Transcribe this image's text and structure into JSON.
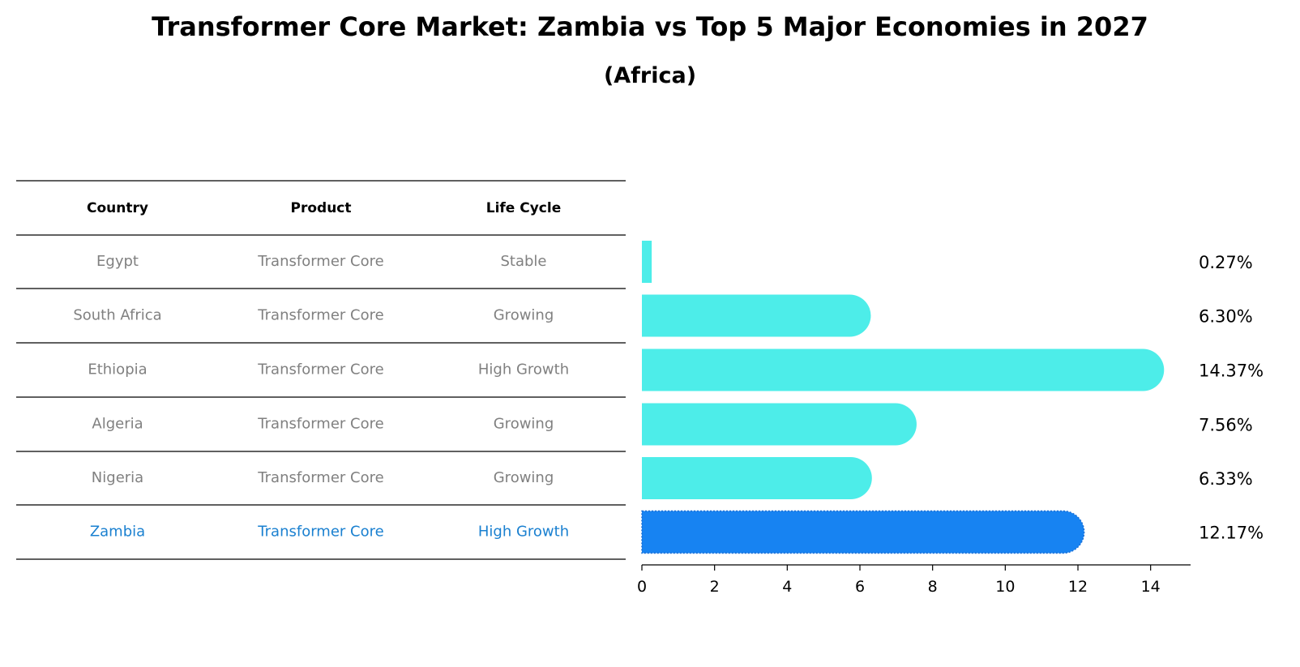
{
  "title": "Transformer Core Market: Zambia vs Top 5 Major Economies in 2027",
  "subtitle": "(Africa)",
  "table": {
    "headers": [
      "Country",
      "Product",
      "Life Cycle"
    ],
    "rows": [
      [
        "Egypt",
        "Transformer Core",
        "Stable"
      ],
      [
        "South Africa",
        "Transformer Core",
        "Growing"
      ],
      [
        "Ethiopia",
        "Transformer Core",
        "High Growth"
      ],
      [
        "Algeria",
        "Transformer Core",
        "Growing"
      ],
      [
        "Nigeria",
        "Transformer Core",
        "Growing"
      ],
      [
        "Zambia",
        "Transformer Core",
        "High Growth"
      ]
    ]
  },
  "colors": {
    "bar": "#4dede9",
    "highlight": "#1783f2",
    "row_text": "#808080",
    "highlight_text": "#1a80d0"
  },
  "chart_data": {
    "type": "bar",
    "orientation": "horizontal",
    "categories": [
      "Egypt",
      "South Africa",
      "Ethiopia",
      "Algeria",
      "Nigeria",
      "Zambia"
    ],
    "values": [
      0.27,
      6.3,
      14.37,
      7.56,
      6.33,
      12.17
    ],
    "data_labels": [
      "0.27%",
      "6.30%",
      "14.37%",
      "7.56%",
      "6.33%",
      "12.17%"
    ],
    "highlight_category": "Zambia",
    "xlim": [
      0,
      15.1
    ],
    "xticks": [
      0,
      2,
      4,
      6,
      8,
      10,
      12,
      14
    ],
    "grid": false
  }
}
